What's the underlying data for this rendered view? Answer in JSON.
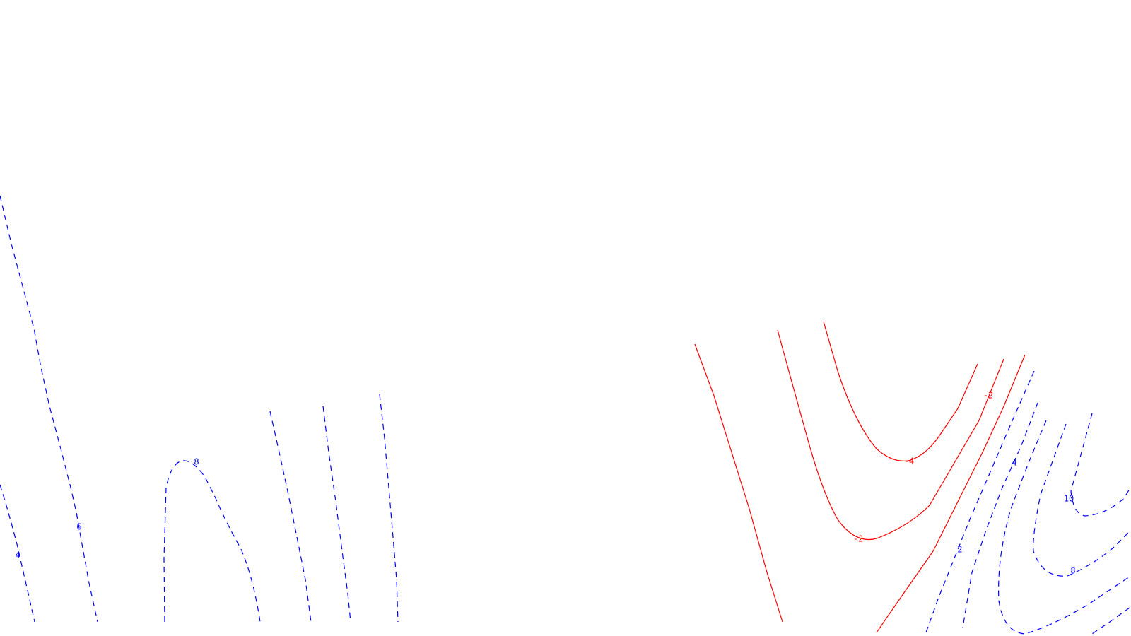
{
  "chart_data": {
    "type": "contour",
    "title": "",
    "xlabel": "",
    "ylabel": "",
    "colors": {
      "negative": "#ff0000",
      "positive": "#0000ff",
      "background": "#ffffff"
    },
    "styles": {
      "negative": "solid",
      "positive": "dashed"
    },
    "levels": [
      {
        "level": 4,
        "sign": "positive",
        "label": "4"
      },
      {
        "level": 6,
        "sign": "positive",
        "label": "6"
      },
      {
        "level": 8,
        "sign": "positive",
        "label": "8"
      },
      {
        "level": 2,
        "sign": "positive",
        "label": "2"
      },
      {
        "level": 4,
        "sign": "positive",
        "label": "4"
      },
      {
        "level": 10,
        "sign": "positive",
        "label": "10"
      },
      {
        "level": 8,
        "sign": "positive",
        "label": "8"
      },
      {
        "level": -4,
        "sign": "negative",
        "label": "-4"
      },
      {
        "level": -2,
        "sign": "negative",
        "label": "-2"
      },
      {
        "level": -2,
        "sign": "negative",
        "label": "-2"
      }
    ]
  }
}
